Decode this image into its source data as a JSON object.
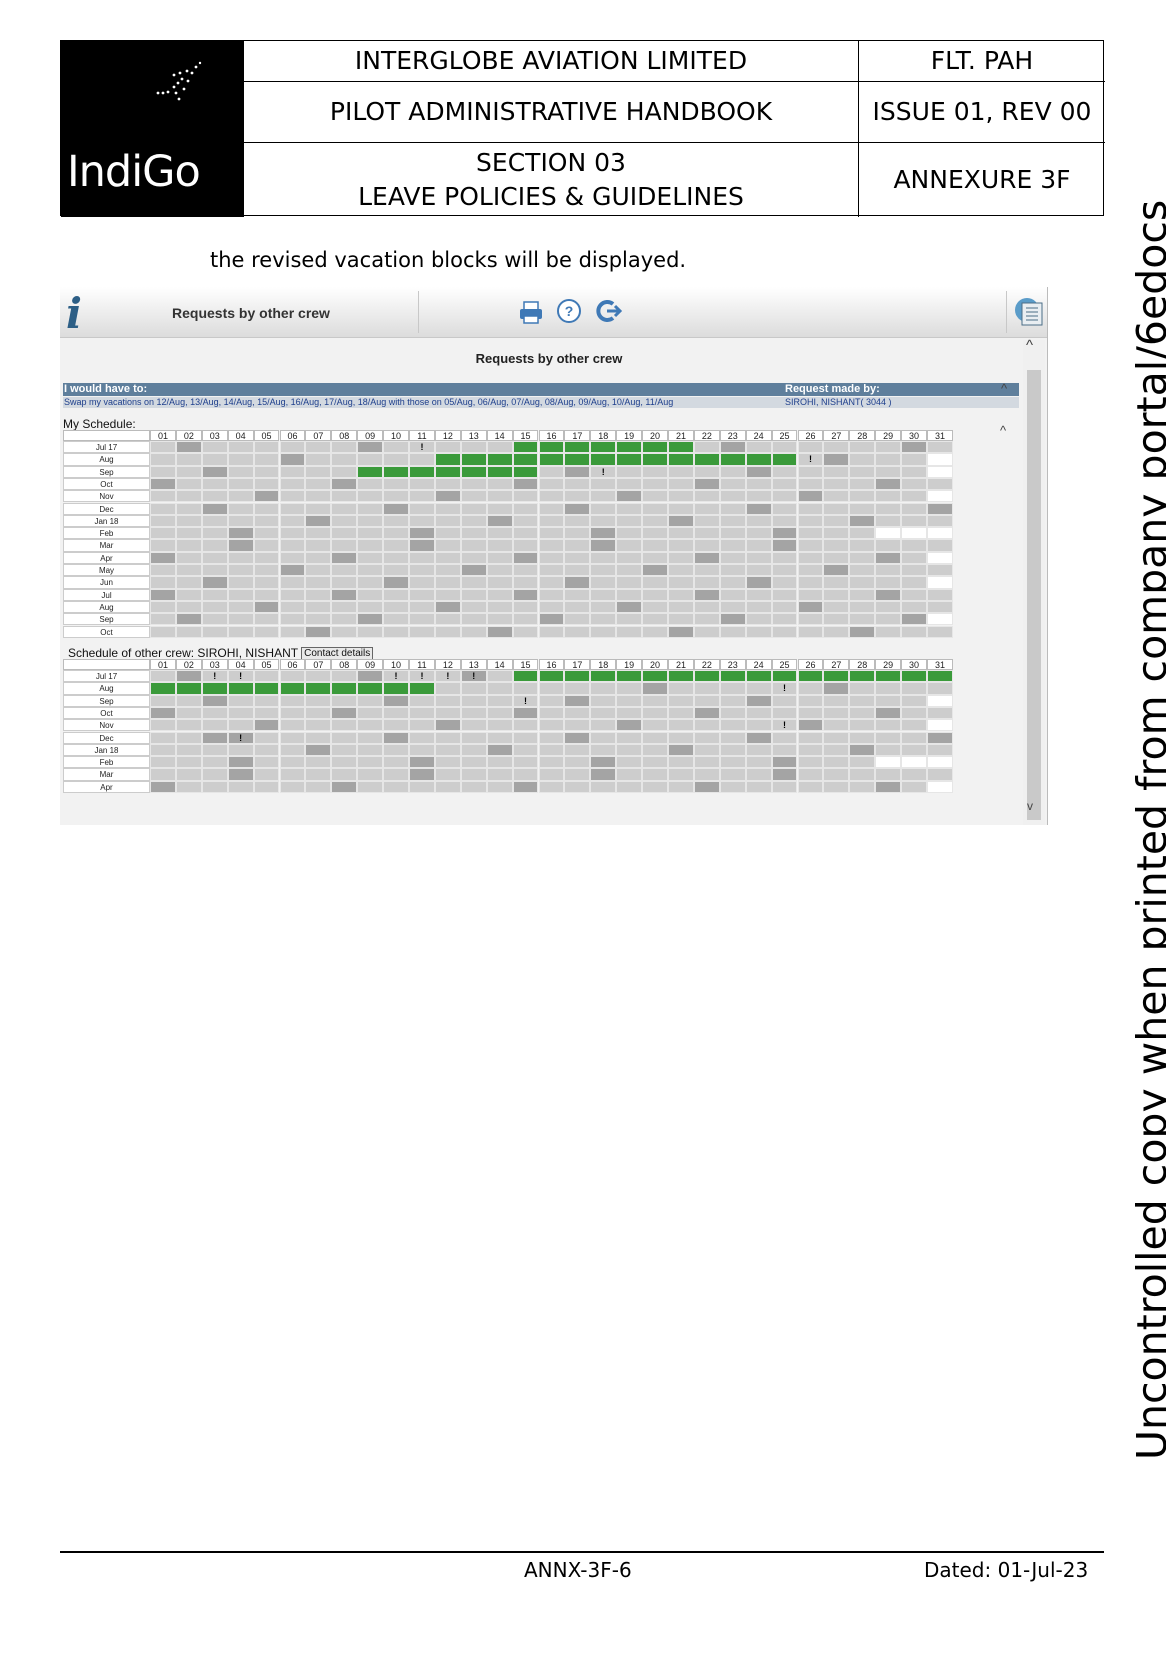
{
  "header": {
    "logo_text": "IndiGo",
    "company": "INTERGLOBE AVIATION LIMITED",
    "doc_code": "FLT. PAH",
    "handbook": "PILOT ADMINISTRATIVE HANDBOOK",
    "issue": "ISSUE 01, REV 00",
    "section_line1": "SECTION 03",
    "section_line2": "LEAVE POLICIES & GUIDELINES",
    "annexure": "ANNEXURE 3F"
  },
  "intro_text": "the revised vacation blocks will be displayed.",
  "watermark": "Uncontrolled copy when printed from company portal/6edocs",
  "screenshot": {
    "toolbar_title": "Requests by other crew",
    "icons": [
      "info-icon",
      "print-icon",
      "help-icon",
      "logout-icon",
      "excel-icon"
    ],
    "page_title": "Requests by other crew",
    "request_header_left": "I would have to:",
    "request_header_right": "Request made by:",
    "request_text": "Swap my vacations on 12/Aug, 13/Aug, 14/Aug, 15/Aug, 16/Aug, 17/Aug, 18/Aug with those on 05/Aug, 06/Aug, 07/Aug, 08/Aug, 09/Aug, 10/Aug, 11/Aug",
    "requester": "SIROHI, NISHANT( 3044 )",
    "my_schedule_label": "My Schedule:",
    "other_schedule_label": "Schedule of other crew: SIROHI, NISHANT",
    "contact_button": "Contact details",
    "days": [
      "01",
      "02",
      "03",
      "04",
      "05",
      "06",
      "07",
      "08",
      "09",
      "10",
      "11",
      "12",
      "13",
      "14",
      "15",
      "16",
      "17",
      "18",
      "19",
      "20",
      "21",
      "22",
      "23",
      "24",
      "25",
      "26",
      "27",
      "28",
      "29",
      "30",
      "31"
    ],
    "colors": {
      "vacation": "#3a9a3a",
      "off": "#a4a4a4",
      "duty": "#cdcdcd",
      "invalid": "#ffffff",
      "header_bar": "#5f7f9c"
    },
    "my_schedule": {
      "months": [
        "Jul 17",
        "Aug",
        "Sep",
        "Oct",
        "Nov",
        "Dec",
        "Jan 18",
        "Feb",
        "Mar",
        "Apr",
        "May",
        "Jun",
        "Jul",
        "Aug",
        "Sep",
        "Oct"
      ],
      "vacation_ranges": [
        [
          0,
          15,
          21
        ],
        [
          1,
          12,
          25
        ],
        [
          2,
          9,
          15
        ]
      ],
      "off_days": [
        [
          0,
          2
        ],
        [
          0,
          9
        ],
        [
          0,
          23
        ],
        [
          0,
          30
        ],
        [
          1,
          6
        ],
        [
          1,
          27
        ],
        [
          2,
          3
        ],
        [
          2,
          17
        ],
        [
          2,
          24
        ],
        [
          3,
          1
        ],
        [
          3,
          8
        ],
        [
          3,
          15
        ],
        [
          3,
          22
        ],
        [
          3,
          29
        ],
        [
          4,
          5
        ],
        [
          4,
          12
        ],
        [
          4,
          19
        ],
        [
          4,
          26
        ],
        [
          5,
          3
        ],
        [
          5,
          10
        ],
        [
          5,
          17
        ],
        [
          5,
          24
        ],
        [
          5,
          31
        ],
        [
          6,
          7
        ],
        [
          6,
          14
        ],
        [
          6,
          21
        ],
        [
          6,
          28
        ],
        [
          7,
          4
        ],
        [
          7,
          11
        ],
        [
          7,
          18
        ],
        [
          7,
          25
        ],
        [
          8,
          4
        ],
        [
          8,
          11
        ],
        [
          8,
          18
        ],
        [
          8,
          25
        ],
        [
          9,
          1
        ],
        [
          9,
          8
        ],
        [
          9,
          15
        ],
        [
          9,
          22
        ],
        [
          9,
          29
        ],
        [
          10,
          6
        ],
        [
          10,
          13
        ],
        [
          10,
          20
        ],
        [
          10,
          27
        ],
        [
          11,
          3
        ],
        [
          11,
          10
        ],
        [
          11,
          17
        ],
        [
          11,
          24
        ],
        [
          12,
          1
        ],
        [
          12,
          8
        ],
        [
          12,
          15
        ],
        [
          12,
          22
        ],
        [
          12,
          29
        ],
        [
          13,
          5
        ],
        [
          13,
          12
        ],
        [
          13,
          19
        ],
        [
          13,
          26
        ],
        [
          14,
          2
        ],
        [
          14,
          9
        ],
        [
          14,
          16
        ],
        [
          14,
          23
        ],
        [
          14,
          30
        ],
        [
          15,
          7
        ],
        [
          15,
          14
        ],
        [
          15,
          21
        ],
        [
          15,
          28
        ]
      ],
      "invalid_days": [
        [
          1,
          31
        ],
        [
          2,
          31
        ],
        [
          4,
          31
        ],
        [
          7,
          29
        ],
        [
          7,
          30
        ],
        [
          7,
          31
        ],
        [
          9,
          31
        ],
        [
          11,
          31
        ],
        [
          14,
          31
        ]
      ],
      "marks": [
        [
          0,
          11,
          "!"
        ],
        [
          1,
          26,
          "!"
        ],
        [
          2,
          18,
          "!"
        ]
      ]
    },
    "other_schedule": {
      "months": [
        "Jul 17",
        "Aug",
        "Sep",
        "Oct",
        "Nov",
        "Dec",
        "Jan 18",
        "Feb",
        "Mar",
        "Apr"
      ],
      "vacation_ranges": [
        [
          0,
          15,
          31
        ],
        [
          1,
          1,
          11
        ]
      ],
      "off_days": [
        [
          0,
          2
        ],
        [
          0,
          9
        ],
        [
          0,
          13
        ],
        [
          1,
          20
        ],
        [
          1,
          27
        ],
        [
          2,
          3
        ],
        [
          2,
          10
        ],
        [
          2,
          17
        ],
        [
          2,
          24
        ],
        [
          3,
          1
        ],
        [
          3,
          8
        ],
        [
          3,
          15
        ],
        [
          3,
          22
        ],
        [
          3,
          29
        ],
        [
          4,
          5
        ],
        [
          4,
          12
        ],
        [
          4,
          19
        ],
        [
          4,
          26
        ],
        [
          5,
          3
        ],
        [
          5,
          4
        ],
        [
          5,
          10
        ],
        [
          5,
          17
        ],
        [
          5,
          24
        ],
        [
          5,
          31
        ],
        [
          6,
          7
        ],
        [
          6,
          14
        ],
        [
          6,
          21
        ],
        [
          6,
          28
        ],
        [
          7,
          4
        ],
        [
          7,
          11
        ],
        [
          7,
          18
        ],
        [
          7,
          25
        ],
        [
          8,
          4
        ],
        [
          8,
          11
        ],
        [
          8,
          18
        ],
        [
          8,
          25
        ],
        [
          9,
          1
        ],
        [
          9,
          8
        ],
        [
          9,
          15
        ],
        [
          9,
          22
        ],
        [
          9,
          29
        ]
      ],
      "invalid_days": [
        [
          2,
          31
        ],
        [
          4,
          31
        ],
        [
          7,
          29
        ],
        [
          7,
          30
        ],
        [
          7,
          31
        ],
        [
          9,
          31
        ]
      ],
      "marks": [
        [
          0,
          3,
          "!"
        ],
        [
          0,
          4,
          "!"
        ],
        [
          0,
          10,
          "!"
        ],
        [
          0,
          11,
          "!"
        ],
        [
          0,
          12,
          "!"
        ],
        [
          0,
          13,
          "!"
        ],
        [
          1,
          25,
          "!"
        ],
        [
          2,
          15,
          "!"
        ],
        [
          4,
          25,
          "!"
        ],
        [
          5,
          4,
          "!"
        ]
      ]
    }
  },
  "footer": {
    "page_ref": "ANNX-3F-6",
    "date": "Dated: 01-Jul-23"
  }
}
